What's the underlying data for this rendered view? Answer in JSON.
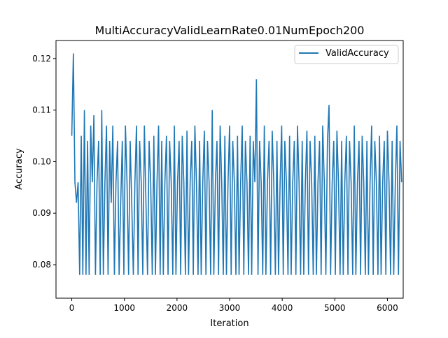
{
  "chart_data": {
    "type": "line",
    "title": "MultiAccuracyValidLearnRate0.01NumEpoch200",
    "xlabel": "Iteration",
    "ylabel": "Accuracy",
    "xlim": [
      -300,
      6300
    ],
    "ylim": [
      0.0735,
      0.1235
    ],
    "xticks": [
      0,
      1000,
      2000,
      3000,
      4000,
      5000,
      6000
    ],
    "xtick_labels": [
      "0",
      "1000",
      "2000",
      "3000",
      "4000",
      "5000",
      "6000"
    ],
    "yticks": [
      0.08,
      0.09,
      0.1,
      0.11,
      0.12
    ],
    "ytick_labels": [
      "0.08",
      "0.09",
      "0.10",
      "0.11",
      "0.12"
    ],
    "grid": false,
    "legend_position": "top-right",
    "series": [
      {
        "name": "ValidAccuracy",
        "color": "#1f77b4",
        "x_start": 0,
        "x_step": 30,
        "levels_note": "values oscillate between these levels",
        "values": [
          0.105,
          0.121,
          0.096,
          0.092,
          0.096,
          0.078,
          0.105,
          0.078,
          0.11,
          0.078,
          0.104,
          0.078,
          0.107,
          0.096,
          0.109,
          0.078,
          0.096,
          0.104,
          0.078,
          0.11,
          0.078,
          0.096,
          0.107,
          0.078,
          0.104,
          0.092,
          0.107,
          0.078,
          0.096,
          0.104,
          0.078,
          0.092,
          0.104,
          0.078,
          0.107,
          0.096,
          0.078,
          0.104,
          0.092,
          0.078,
          0.096,
          0.107,
          0.078,
          0.104,
          0.096,
          0.078,
          0.107,
          0.092,
          0.078,
          0.104,
          0.096,
          0.078,
          0.105,
          0.078,
          0.096,
          0.107,
          0.078,
          0.104,
          0.078,
          0.096,
          0.105,
          0.078,
          0.104,
          0.096,
          0.078,
          0.107,
          0.078,
          0.096,
          0.104,
          0.078,
          0.105,
          0.096,
          0.078,
          0.106,
          0.078,
          0.096,
          0.104,
          0.078,
          0.107,
          0.096,
          0.078,
          0.104,
          0.078,
          0.096,
          0.106,
          0.078,
          0.104,
          0.096,
          0.078,
          0.11,
          0.078,
          0.096,
          0.104,
          0.078,
          0.107,
          0.096,
          0.078,
          0.105,
          0.078,
          0.096,
          0.107,
          0.078,
          0.104,
          0.096,
          0.078,
          0.105,
          0.078,
          0.096,
          0.107,
          0.078,
          0.104,
          0.096,
          0.078,
          0.105,
          0.078,
          0.104,
          0.096,
          0.116,
          0.078,
          0.104,
          0.096,
          0.078,
          0.107,
          0.078,
          0.096,
          0.104,
          0.078,
          0.106,
          0.096,
          0.078,
          0.104,
          0.078,
          0.096,
          0.107,
          0.078,
          0.104,
          0.096,
          0.078,
          0.105,
          0.078,
          0.096,
          0.104,
          0.078,
          0.107,
          0.096,
          0.078,
          0.104,
          0.078,
          0.096,
          0.106,
          0.078,
          0.104,
          0.096,
          0.078,
          0.105,
          0.078,
          0.096,
          0.104,
          0.078,
          0.107,
          0.096,
          0.078,
          0.104,
          0.111,
          0.078,
          0.096,
          0.104,
          0.078,
          0.106,
          0.096,
          0.078,
          0.104,
          0.078,
          0.096,
          0.105,
          0.078,
          0.104,
          0.096,
          0.078,
          0.107,
          0.078,
          0.096,
          0.104,
          0.078,
          0.105,
          0.096,
          0.078,
          0.104,
          0.078,
          0.096,
          0.107,
          0.078,
          0.104,
          0.096,
          0.078,
          0.105,
          0.078,
          0.096,
          0.104,
          0.078,
          0.106,
          0.096,
          0.078,
          0.104,
          0.078,
          0.096,
          0.107,
          0.078,
          0.104,
          0.096
        ]
      }
    ]
  }
}
